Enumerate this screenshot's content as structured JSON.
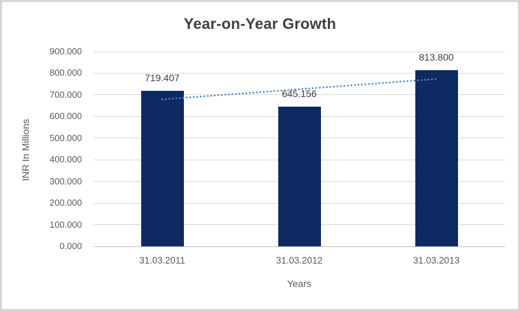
{
  "chart_data": {
    "type": "bar",
    "title": "Year-on-Year Growth",
    "xlabel": "Years",
    "ylabel": "INR In Millions",
    "categories": [
      "31.03.2011",
      "31.03.2012",
      "31.03.2013"
    ],
    "values": [
      719.407,
      645.156,
      813.8
    ],
    "data_labels": [
      "719.407",
      "645.156",
      "813.800"
    ],
    "ylim": [
      0,
      900
    ],
    "y_tick_step": 100,
    "y_tick_labels": [
      "0.000",
      "100.000",
      "200.000",
      "300.000",
      "400.000",
      "500.000",
      "600.000",
      "700.000",
      "800.000",
      "900.000"
    ],
    "grid": true,
    "legend": "none",
    "trendline": {
      "type": "linear",
      "style": "dotted",
      "color": "#4e88cc"
    },
    "colors": {
      "bar_fill": "#0e2a63",
      "title_text": "#404040",
      "axis_text": "#595959",
      "data_label_text": "#404040",
      "gridline": "#d9d9d9",
      "axis_line": "#bfbfbf",
      "frame_border": "#d5d5d5",
      "background": "#ffffff"
    }
  }
}
